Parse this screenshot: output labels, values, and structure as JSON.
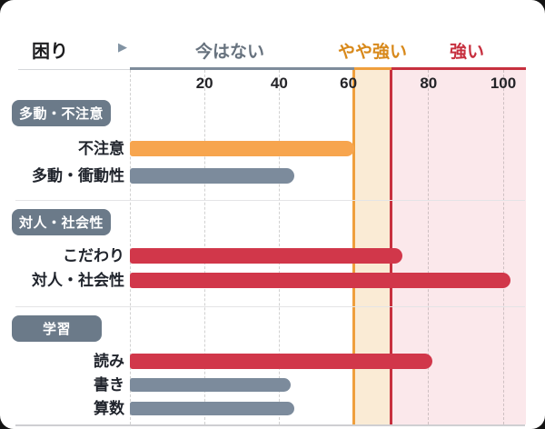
{
  "header": {
    "title": "困り",
    "arrow_icon": "▶",
    "legend": [
      {
        "label": "今はない",
        "color": "#67727e"
      },
      {
        "label": "やや強い",
        "color": "#d8891b"
      },
      {
        "label": "強い",
        "color": "#c7303f"
      }
    ]
  },
  "chart_data": {
    "type": "bar",
    "orientation": "horizontal",
    "title": "困り",
    "xlim": [
      0,
      106
    ],
    "ticks": [
      20,
      40,
      60,
      80,
      100
    ],
    "grid": true,
    "zones": [
      {
        "label": "今はない",
        "from": 0,
        "to": 60,
        "fill": "#ffffff",
        "line": "#7e8c9b"
      },
      {
        "label": "やや強い",
        "from": 60,
        "to": 70,
        "fill": "#faebd5",
        "line": "#ef9f3d"
      },
      {
        "label": "強い",
        "from": 70,
        "to": 106,
        "fill": "#fbe8eb",
        "line": "#c7303f"
      }
    ],
    "groups": [
      {
        "badge": "多動・不注意",
        "items": [
          {
            "label": "不注意",
            "value": 60,
            "color": "orange"
          },
          {
            "label": "多動・衝動性",
            "value": 44,
            "color": "gray"
          }
        ]
      },
      {
        "badge": "対人・社会性",
        "items": [
          {
            "label": "こだわり",
            "value": 73,
            "color": "red"
          },
          {
            "label": "対人・社会性",
            "value": 102,
            "color": "red"
          }
        ]
      },
      {
        "badge": "学習",
        "items": [
          {
            "label": "読み",
            "value": 81,
            "color": "red"
          },
          {
            "label": "書き",
            "value": 43,
            "color": "gray"
          },
          {
            "label": "算数",
            "value": 44,
            "color": "gray"
          }
        ]
      }
    ],
    "bar_colors": {
      "orange": "#f7a54e",
      "gray": "#7c8b9c",
      "red": "#d1374a"
    }
  }
}
